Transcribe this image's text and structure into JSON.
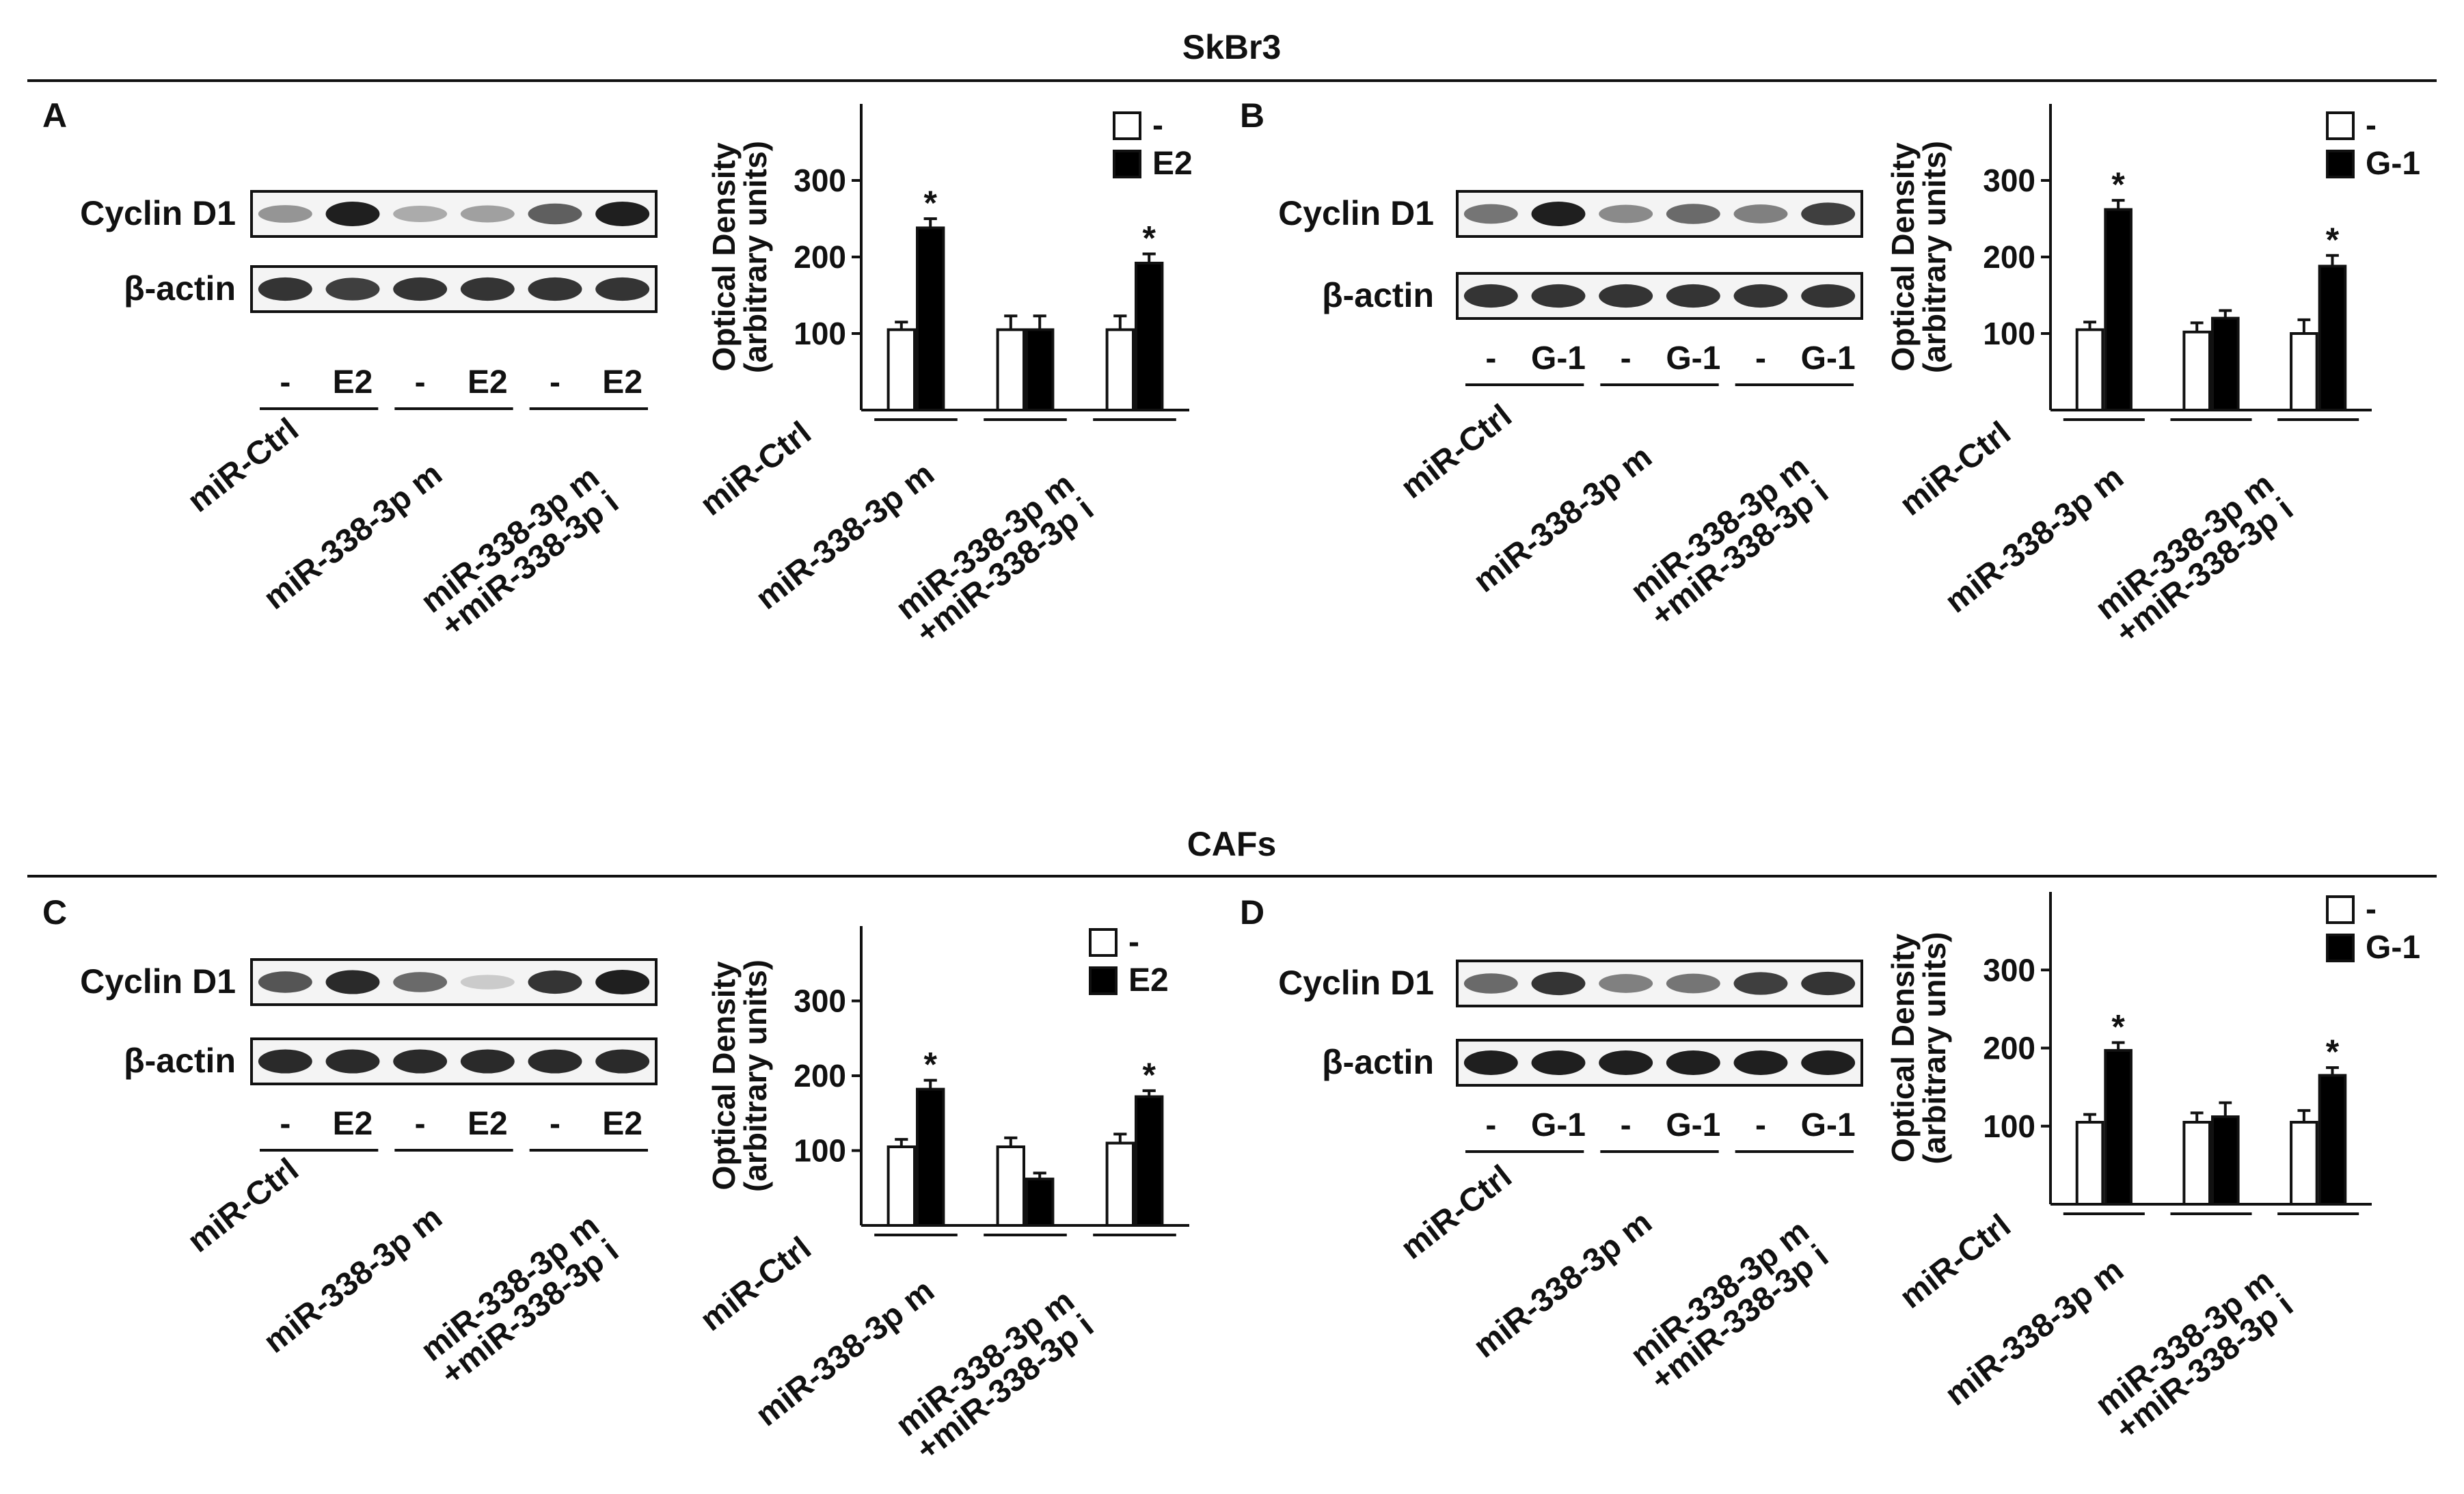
{
  "sections": [
    {
      "title": "SkBr3"
    },
    {
      "title": "CAFs"
    }
  ],
  "panels": [
    {
      "letter": "A",
      "blot": {
        "target_label": "Cyclin D1",
        "loading_label": "β-actin",
        "lane_labels": [
          "-",
          "E2",
          "-",
          "E2",
          "-",
          "E2"
        ],
        "group_labels": [
          [
            "miR-Ctrl"
          ],
          [
            "miR-338-3p m"
          ],
          [
            "miR-338-3p m",
            "+miR-338-3p i"
          ]
        ],
        "target_band_intensity": [
          0.4,
          0.95,
          0.3,
          0.35,
          0.65,
          0.95
        ],
        "loading_band_intensity": [
          0.85,
          0.8,
          0.85,
          0.85,
          0.85,
          0.85
        ]
      }
    },
    {
      "letter": "B",
      "blot": {
        "target_label": "Cyclin D1",
        "loading_label": "β-actin",
        "lane_labels": [
          "-",
          "G-1",
          "-",
          "G-1",
          "-",
          "G-1"
        ],
        "group_labels": [
          [
            "miR-Ctrl"
          ],
          [
            "miR-338-3p m"
          ],
          [
            "miR-338-3p m",
            "+miR-338-3p i"
          ]
        ],
        "target_band_intensity": [
          0.55,
          0.95,
          0.45,
          0.6,
          0.5,
          0.8
        ],
        "loading_band_intensity": [
          0.85,
          0.85,
          0.85,
          0.85,
          0.85,
          0.85
        ]
      }
    },
    {
      "letter": "C",
      "blot": {
        "target_label": "Cyclin D1",
        "loading_label": "β-actin",
        "lane_labels": [
          "-",
          "E2",
          "-",
          "E2",
          "-",
          "E2"
        ],
        "group_labels": [
          [
            "miR-Ctrl"
          ],
          [
            "miR-338-3p m"
          ],
          [
            "miR-338-3p m",
            "+miR-338-3p i"
          ]
        ],
        "target_band_intensity": [
          0.7,
          0.9,
          0.6,
          0.15,
          0.85,
          0.95
        ],
        "loading_band_intensity": [
          0.9,
          0.9,
          0.9,
          0.9,
          0.9,
          0.9
        ]
      }
    },
    {
      "letter": "D",
      "blot": {
        "target_label": "Cyclin D1",
        "loading_label": "β-actin",
        "lane_labels": [
          "-",
          "G-1",
          "-",
          "G-1",
          "-",
          "G-1"
        ],
        "group_labels": [
          [
            "miR-Ctrl"
          ],
          [
            "miR-338-3p m"
          ],
          [
            "miR-338-3p m",
            "+miR-338-3p i"
          ]
        ],
        "target_band_intensity": [
          0.6,
          0.85,
          0.5,
          0.55,
          0.8,
          0.85
        ],
        "loading_band_intensity": [
          0.95,
          0.95,
          0.95,
          0.95,
          0.95,
          0.95
        ]
      }
    }
  ],
  "chart_data": [
    {
      "panel": "A",
      "type": "bar",
      "ylabel": [
        "Optical Density",
        "(arbitrary units)"
      ],
      "yticks": [
        100,
        200,
        300
      ],
      "ylim": [
        0,
        400
      ],
      "legend_position": "top-right",
      "categories": [
        [
          "miR-Ctrl"
        ],
        [
          "miR-338-3p m"
        ],
        [
          "miR-338-3p m",
          "+miR-338-3p i"
        ]
      ],
      "series": [
        {
          "name": "-",
          "color": "#ffffff",
          "values": [
            105,
            105,
            105
          ],
          "errors": [
            10,
            18,
            18
          ]
        },
        {
          "name": "E2",
          "color": "#000000",
          "values": [
            238,
            105,
            192
          ],
          "errors": [
            12,
            18,
            12
          ]
        }
      ],
      "significance": [
        "*",
        "",
        "*"
      ]
    },
    {
      "panel": "B",
      "type": "bar",
      "ylabel": [
        "Optical Density",
        "(arbitrary units)"
      ],
      "yticks": [
        100,
        200,
        300
      ],
      "ylim": [
        0,
        400
      ],
      "legend_position": "top-right",
      "categories": [
        [
          "miR-Ctrl"
        ],
        [
          "miR-338-3p m"
        ],
        [
          "miR-338-3p m",
          "+miR-338-3p i"
        ]
      ],
      "series": [
        {
          "name": "-",
          "color": "#ffffff",
          "values": [
            105,
            102,
            100
          ],
          "errors": [
            10,
            12,
            18
          ]
        },
        {
          "name": "G-1",
          "color": "#000000",
          "values": [
            262,
            120,
            188
          ],
          "errors": [
            12,
            10,
            14
          ]
        }
      ],
      "significance": [
        "*",
        "",
        "*"
      ]
    },
    {
      "panel": "C",
      "type": "bar",
      "ylabel": [
        "Optical Density",
        "(arbitrary units)"
      ],
      "yticks": [
        100,
        200,
        300
      ],
      "ylim": [
        0,
        400
      ],
      "legend_position": "top-right",
      "categories": [
        [
          "miR-Ctrl"
        ],
        [
          "miR-338-3p m"
        ],
        [
          "miR-338-3p m",
          "+miR-338-3p i"
        ]
      ],
      "series": [
        {
          "name": "-",
          "color": "#ffffff",
          "values": [
            105,
            105,
            110
          ],
          "errors": [
            10,
            12,
            12
          ]
        },
        {
          "name": "E2",
          "color": "#000000",
          "values": [
            182,
            62,
            172
          ],
          "errors": [
            12,
            8,
            8
          ]
        }
      ],
      "significance": [
        "*",
        "",
        "*"
      ]
    },
    {
      "panel": "D",
      "type": "bar",
      "ylabel": [
        "Optical Density",
        "(arbitrary units)"
      ],
      "yticks": [
        100,
        200,
        300
      ],
      "ylim": [
        0,
        400
      ],
      "legend_position": "top-right",
      "categories": [
        [
          "miR-Ctrl"
        ],
        [
          "miR-338-3p m"
        ],
        [
          "miR-338-3p m",
          "+miR-338-3p i"
        ]
      ],
      "series": [
        {
          "name": "-",
          "color": "#ffffff",
          "values": [
            105,
            105,
            105
          ],
          "errors": [
            10,
            12,
            15
          ]
        },
        {
          "name": "G-1",
          "color": "#000000",
          "values": [
            197,
            112,
            165
          ],
          "errors": [
            10,
            18,
            10
          ]
        }
      ],
      "significance": [
        "*",
        "",
        "*"
      ]
    }
  ]
}
